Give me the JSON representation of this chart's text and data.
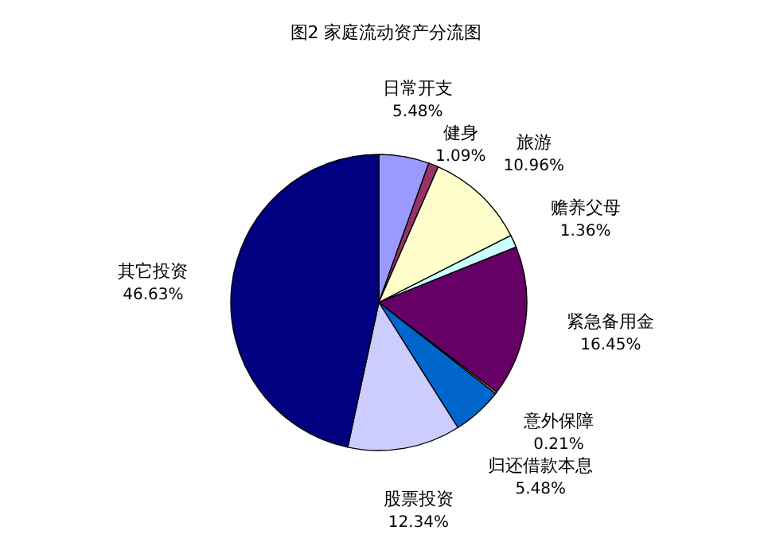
{
  "chart_data": {
    "type": "pie",
    "title": "图2 家庭流动资产分流图",
    "categories": [
      "日常开支",
      "健身",
      "旅游",
      "赡养父母",
      "紧急备用金",
      "意外保障",
      "归还借款本息",
      "股票投资",
      "其它投资"
    ],
    "values": [
      5.48,
      1.09,
      10.96,
      1.36,
      16.45,
      0.21,
      5.48,
      12.34,
      46.63
    ],
    "value_labels": [
      "5.48%",
      "1.09%",
      "10.96%",
      "1.36%",
      "16.45%",
      "0.21%",
      "5.48%",
      "12.34%",
      "46.63%"
    ],
    "colors": [
      "#9999ff",
      "#993366",
      "#ffffcc",
      "#ccffff",
      "#660066",
      "#ff8080",
      "#0066cc",
      "#ccccff",
      "#000080"
    ]
  }
}
